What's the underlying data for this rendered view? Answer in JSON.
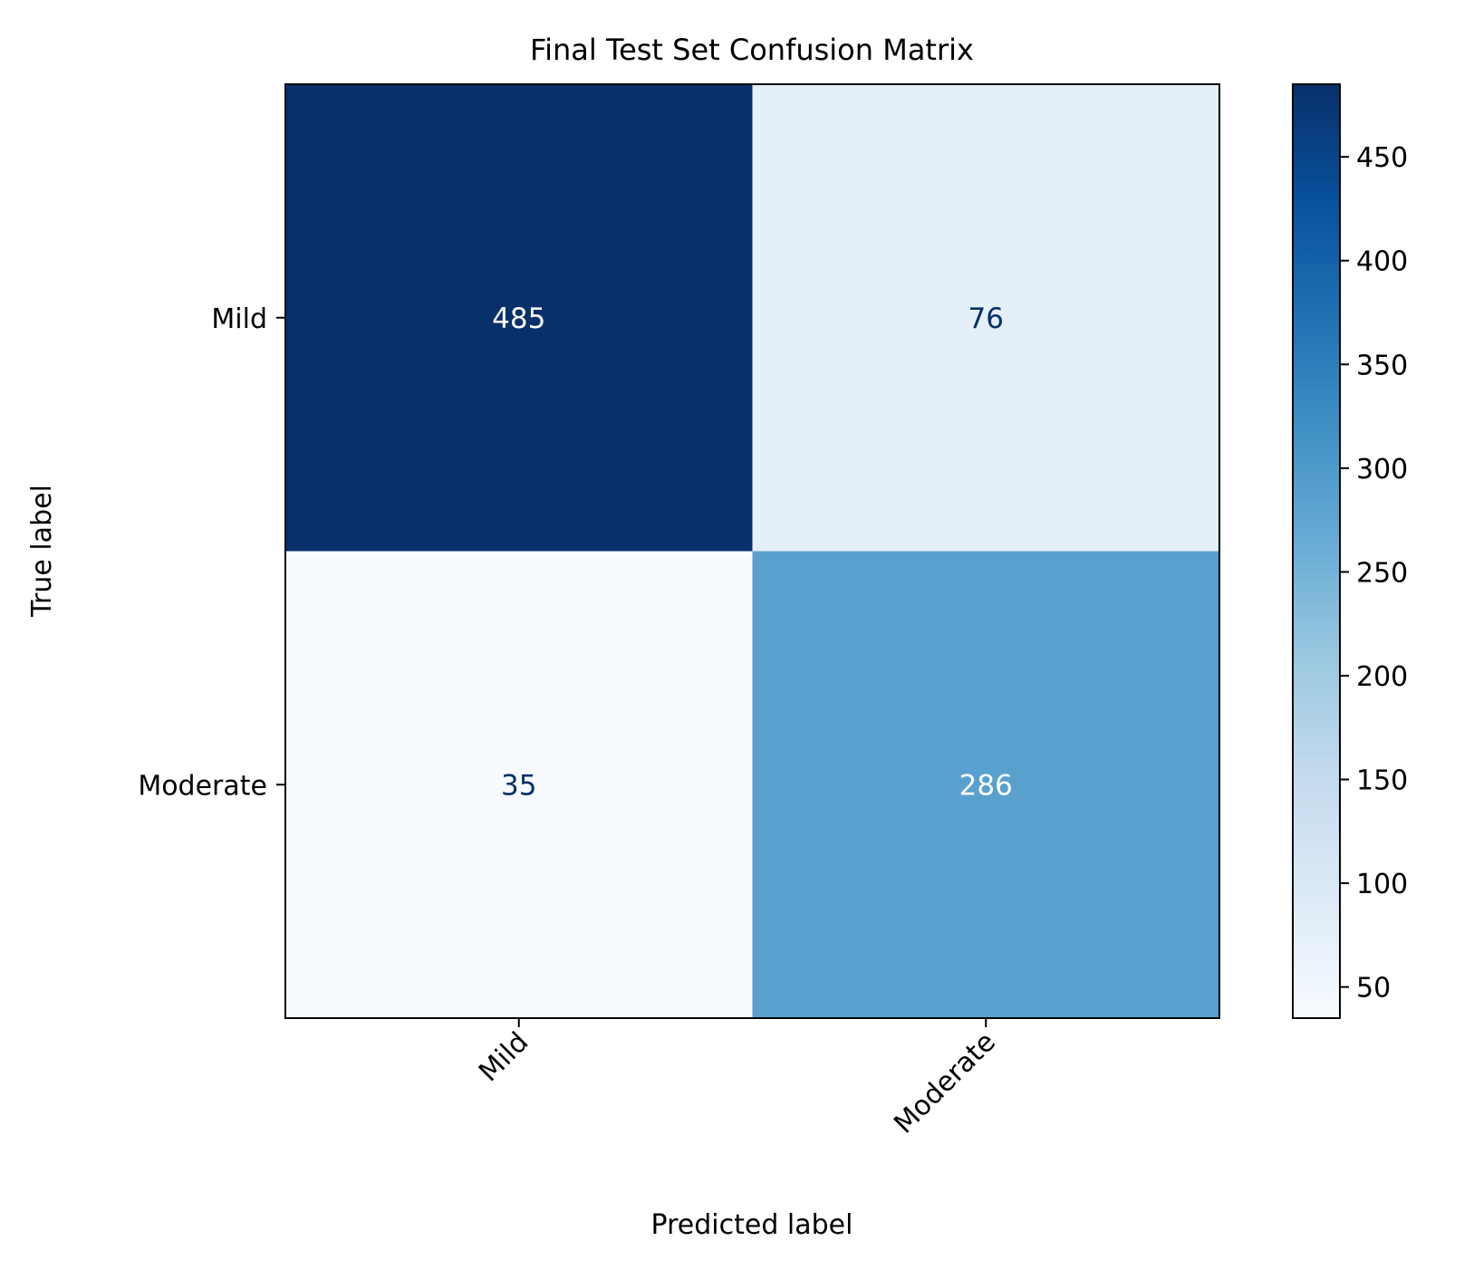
{
  "chart_data": {
    "type": "heatmap",
    "title": "Final Test Set Confusion Matrix",
    "xlabel": "Predicted label",
    "ylabel": "True label",
    "x_categories": [
      "Mild",
      "Moderate"
    ],
    "y_categories": [
      "Mild",
      "Moderate"
    ],
    "values": [
      [
        485,
        76
      ],
      [
        35,
        286
      ]
    ],
    "colormap": "Blues",
    "colorbar": {
      "vmin": 35,
      "vmax": 485,
      "ticks": [
        50,
        100,
        150,
        200,
        250,
        300,
        350,
        400,
        450
      ],
      "tick_labels": [
        "50",
        "100",
        "150",
        "200",
        "250",
        "300",
        "350",
        "400",
        "450"
      ]
    },
    "text_colors": {
      "on_dark": "#ffffff",
      "on_light": "#08306b"
    },
    "grid": false,
    "x_tick_rotation_deg": 45
  }
}
